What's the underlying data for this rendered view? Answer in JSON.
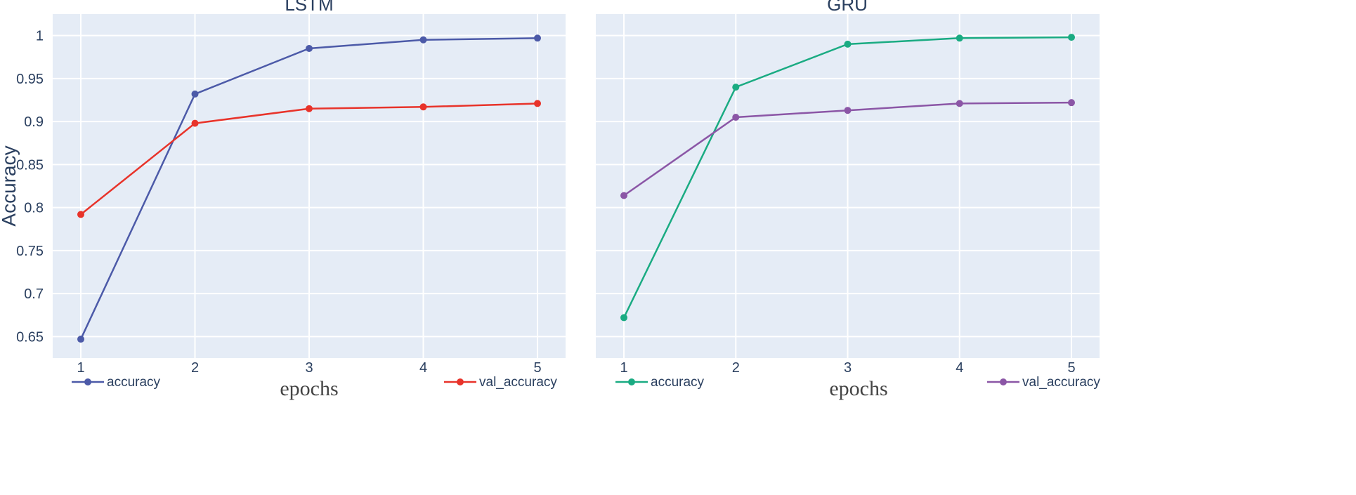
{
  "chart_data": [
    {
      "type": "line",
      "title": "LSTM",
      "xlabel": "epochs",
      "ylabel": "Accuracy",
      "x": [
        1,
        2,
        3,
        4,
        5
      ],
      "ylim": [
        0.625,
        1.025
      ],
      "yticks": [
        0.65,
        0.7,
        0.75,
        0.8,
        0.85,
        0.9,
        0.95,
        1
      ],
      "ytick_labels": [
        "0.65",
        "0.7",
        "0.75",
        "0.8",
        "0.85",
        "0.9",
        "0.95",
        "1"
      ],
      "xtick_labels": [
        "1",
        "2",
        "3",
        "4",
        "5"
      ],
      "grid": true,
      "legend": "bottom",
      "series": [
        {
          "name": "accuracy",
          "color": "#4c5aa8",
          "values": [
            0.647,
            0.932,
            0.985,
            0.995,
            0.997
          ]
        },
        {
          "name": "val_accuracy",
          "color": "#e8332a",
          "values": [
            0.792,
            0.898,
            0.915,
            0.917,
            0.921
          ]
        }
      ]
    },
    {
      "type": "line",
      "title": "GRU",
      "xlabel": "epochs",
      "ylabel": "",
      "x": [
        1,
        2,
        3,
        4,
        5
      ],
      "ylim": [
        0.625,
        1.025
      ],
      "xtick_labels": [
        "1",
        "2",
        "3",
        "4",
        "5"
      ],
      "grid": true,
      "legend": "bottom",
      "series": [
        {
          "name": "accuracy",
          "color": "#1aab82",
          "values": [
            0.672,
            0.94,
            0.99,
            0.997,
            0.998
          ]
        },
        {
          "name": "val_accuracy",
          "color": "#8b56a6",
          "values": [
            0.814,
            0.905,
            0.913,
            0.921,
            0.922
          ]
        }
      ]
    }
  ],
  "colors": {
    "plot_background": "#e5ecf6",
    "gridline": "#ffffff",
    "text": "#2a3f5f"
  }
}
